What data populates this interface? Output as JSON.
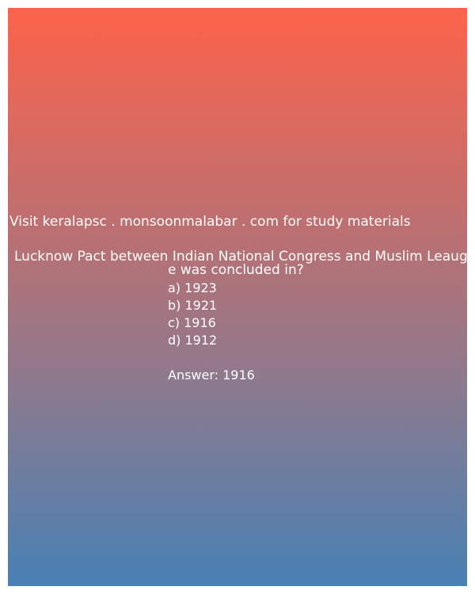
{
  "site_notice": "Visit keralapsc . monsoonmalabar . com for study materials",
  "question": {
    "line1": "Lucknow Pact between Indian National Congress and Muslim Leaug",
    "line2": "e was concluded in?"
  },
  "options": [
    "a) 1923",
    "b) 1921",
    "c) 1916",
    "d) 1912"
  ],
  "answer": "Answer: 1916",
  "colors": {
    "gradient_top": "#fd634b",
    "gradient_bottom": "#4881b4",
    "text": "#ffffff"
  }
}
